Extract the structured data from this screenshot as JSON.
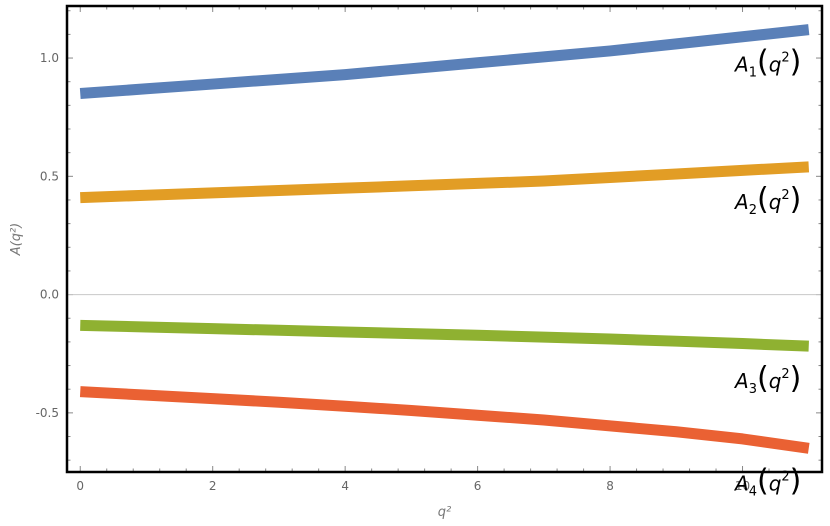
{
  "chart_data": {
    "type": "line",
    "xlabel": "q²",
    "ylabel": "A(q²)",
    "xlim": [
      -0.2,
      11.2
    ],
    "ylim": [
      -0.75,
      1.22
    ],
    "x_ticks": [
      0,
      2,
      4,
      6,
      8,
      10
    ],
    "x_tick_labels": [
      "0",
      "2",
      "4",
      "6",
      "8",
      "10"
    ],
    "y_ticks": [
      -0.5,
      0.0,
      0.5,
      1.0
    ],
    "y_tick_labels": [
      "-0.5",
      "0.0",
      "0.5",
      "1.0"
    ],
    "grid": false,
    "zero_line": true,
    "frame": true,
    "legend": "inline labels at right end",
    "series": [
      {
        "name": "A1(q²)",
        "label_base": "A",
        "label_sub": "1",
        "label_arg": "q",
        "label_sup": "2",
        "color": "#5a80b8",
        "x": [
          0,
          1,
          2,
          3,
          4,
          5,
          6,
          7,
          8,
          9,
          10,
          11
        ],
        "y": [
          0.85,
          0.87,
          0.89,
          0.91,
          0.93,
          0.955,
          0.98,
          1.005,
          1.03,
          1.06,
          1.09,
          1.12
        ]
      },
      {
        "name": "A2(q²)",
        "label_base": "A",
        "label_sub": "2",
        "label_arg": "q",
        "label_sup": "2",
        "color": "#e29d25",
        "x": [
          0,
          1,
          2,
          3,
          4,
          5,
          6,
          7,
          8,
          9,
          10,
          11
        ],
        "y": [
          0.41,
          0.42,
          0.43,
          0.44,
          0.45,
          0.46,
          0.47,
          0.48,
          0.495,
          0.51,
          0.525,
          0.54
        ]
      },
      {
        "name": "A3(q²)",
        "label_base": "A",
        "label_sub": "3",
        "label_arg": "q",
        "label_sup": "2",
        "color": "#8fb131",
        "x": [
          0,
          1,
          2,
          3,
          4,
          5,
          6,
          7,
          8,
          9,
          10,
          11
        ],
        "y": [
          -0.13,
          -0.137,
          -0.144,
          -0.151,
          -0.158,
          -0.165,
          -0.172,
          -0.18,
          -0.188,
          -0.197,
          -0.207,
          -0.218
        ]
      },
      {
        "name": "A4(q²)",
        "label_base": "A",
        "label_sub": "4",
        "label_arg": "q",
        "label_sup": "2",
        "color": "#ea6133",
        "x": [
          0,
          1,
          2,
          3,
          4,
          5,
          6,
          7,
          8,
          9,
          10,
          11
        ],
        "y": [
          -0.41,
          -0.425,
          -0.44,
          -0.455,
          -0.472,
          -0.49,
          -0.51,
          -0.53,
          -0.555,
          -0.58,
          -0.61,
          -0.65
        ]
      }
    ]
  }
}
